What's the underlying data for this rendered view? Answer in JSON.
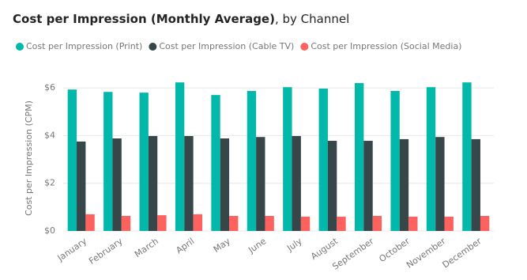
{
  "chart_data": {
    "type": "bar",
    "title": "Cost per Impression (Monthly Average)",
    "title_suffix": ", by Channel",
    "y_label": "Cost per Impression (CPM)",
    "categories": [
      "January",
      "February",
      "March",
      "April",
      "May",
      "June",
      "July",
      "August",
      "September",
      "October",
      "November",
      "December"
    ],
    "series": [
      {
        "name": "Cost per Impression (Print)",
        "color": "#01B8AA",
        "values": [
          5.93,
          5.83,
          5.8,
          6.23,
          5.7,
          5.87,
          6.03,
          5.97,
          6.2,
          5.87,
          6.03,
          6.23
        ]
      },
      {
        "name": "Cost per Impression (Cable TV)",
        "color": "#374649",
        "values": [
          3.75,
          3.88,
          3.98,
          3.98,
          3.88,
          3.94,
          3.98,
          3.78,
          3.78,
          3.85,
          3.94,
          3.85
        ]
      },
      {
        "name": "Cost per Impression (Social Media)",
        "color": "#FD625E",
        "values": [
          0.7,
          0.63,
          0.66,
          0.7,
          0.63,
          0.63,
          0.6,
          0.6,
          0.63,
          0.6,
          0.6,
          0.63
        ]
      }
    ],
    "ylim": [
      0,
      6.6
    ],
    "yticks": [
      {
        "value": 0,
        "label": "$0"
      },
      {
        "value": 2,
        "label": "$2"
      },
      {
        "value": 4,
        "label": "$4"
      },
      {
        "value": 6,
        "label": "$6"
      }
    ],
    "grid": true
  }
}
